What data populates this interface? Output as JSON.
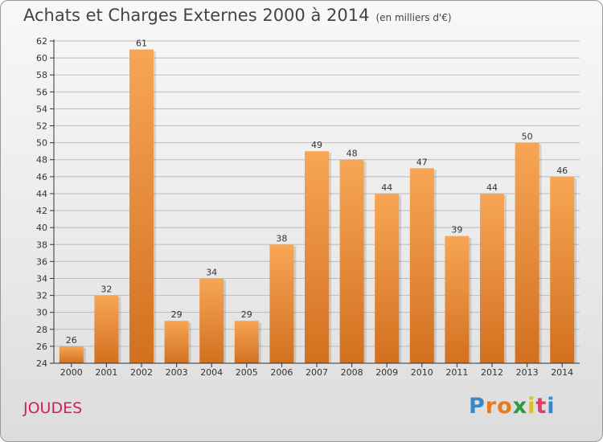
{
  "title": "Achats et Charges Externes 2000 à 2014",
  "unit": "(en milliers d'€)",
  "commune": "JOUDES",
  "logo": {
    "text": "Proxiti",
    "letters": [
      "P",
      "r",
      "o",
      "x",
      "i",
      "t",
      "i"
    ],
    "colors": [
      "#3a86c8",
      "#e87a1e",
      "#e87a1e",
      "#2a9a3a",
      "#d8c020",
      "#e23a6a",
      "#3a86c8"
    ]
  },
  "colors": {
    "bar_top": "#f7a655",
    "bar_bottom": "#d2701f",
    "grid": "#bbbbbb",
    "axis": "#333333",
    "commune": "#cc2255"
  },
  "chart_data": {
    "type": "bar",
    "title": "Achats et Charges Externes 2000 à 2014",
    "subtitle": "(en milliers d'€)",
    "xlabel": "",
    "ylabel": "",
    "categories": [
      "2000",
      "2001",
      "2002",
      "2003",
      "2004",
      "2005",
      "2006",
      "2007",
      "2008",
      "2009",
      "2010",
      "2011",
      "2012",
      "2013",
      "2014"
    ],
    "values": [
      26,
      32,
      61,
      29,
      34,
      29,
      38,
      49,
      48,
      44,
      47,
      39,
      44,
      50,
      46
    ],
    "ylim": [
      24,
      62
    ],
    "yticks": [
      24,
      26,
      28,
      30,
      32,
      34,
      36,
      38,
      40,
      42,
      44,
      46,
      48,
      50,
      52,
      54,
      56,
      58,
      60,
      62
    ],
    "grid": true,
    "data_labels": true
  }
}
